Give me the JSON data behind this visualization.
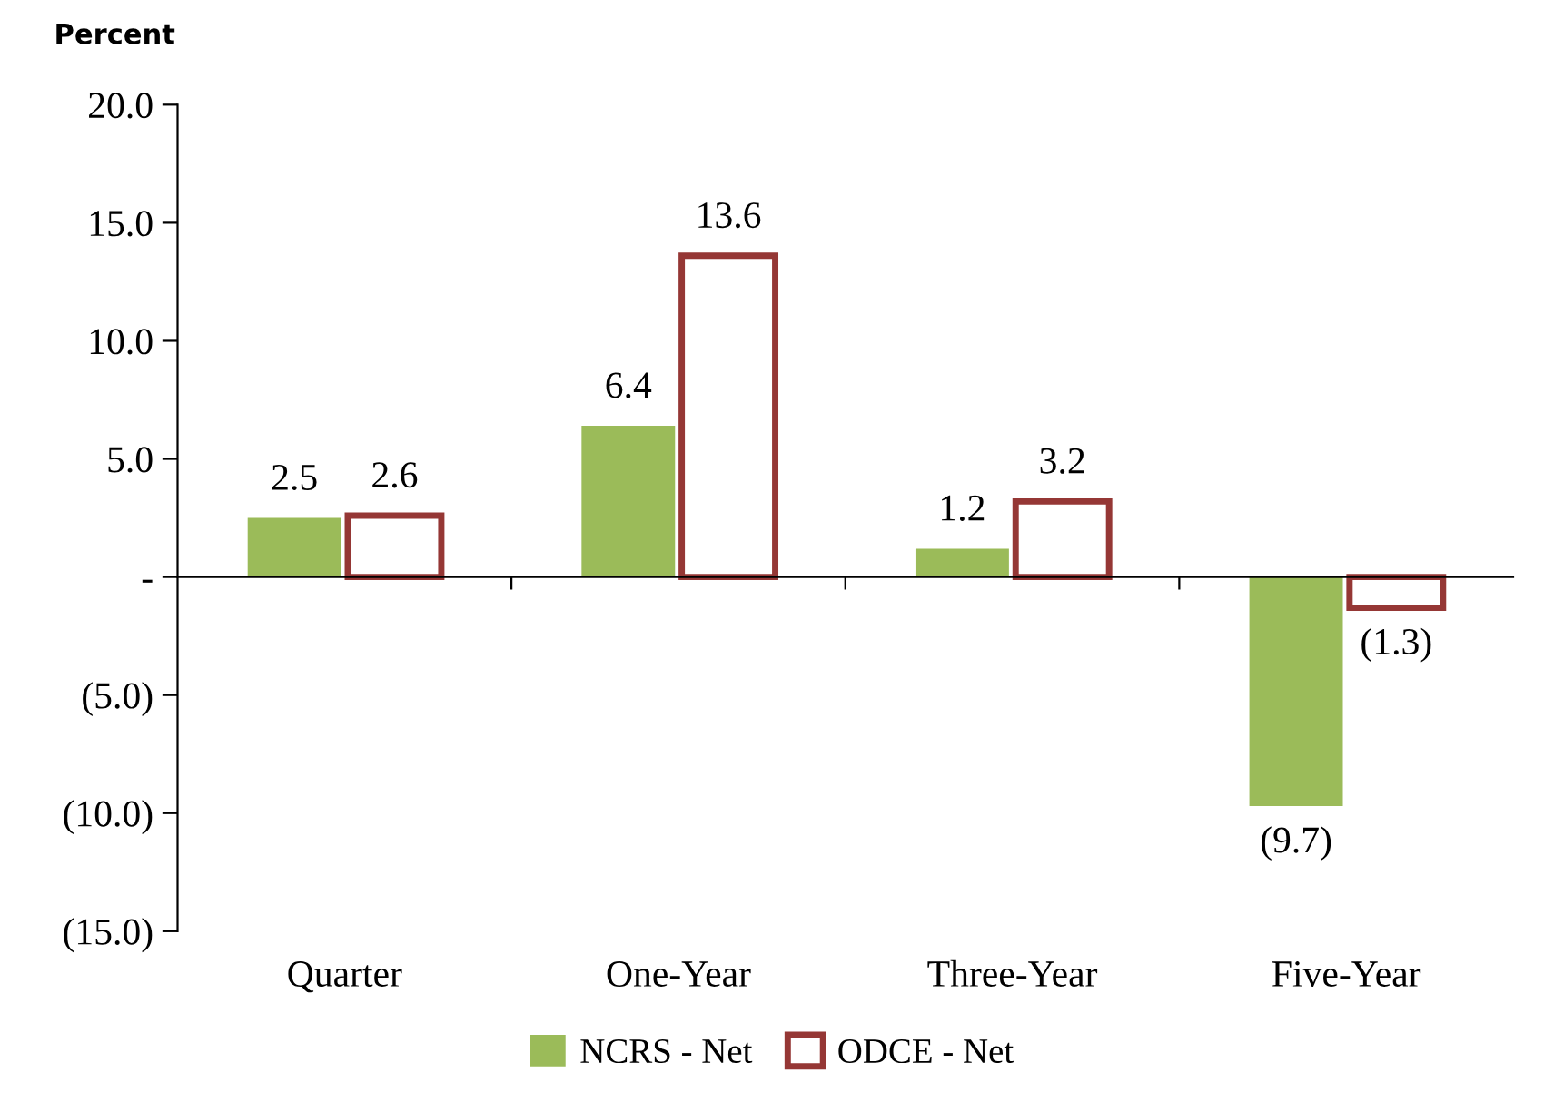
{
  "chart_data": {
    "type": "bar",
    "ylabel": "Percent",
    "categories": [
      "Quarter",
      "One-Year",
      "Three-Year",
      "Five-Year"
    ],
    "series": [
      {
        "name": "NCRS - Net",
        "color": "#9bbb59",
        "values": [
          2.5,
          6.4,
          1.2,
          -9.7
        ],
        "value_labels": [
          "2.5",
          "6.4",
          "1.2",
          "(9.7)"
        ]
      },
      {
        "name": "ODCE - Net",
        "color": "#953735",
        "values": [
          2.6,
          13.6,
          3.2,
          -1.3
        ],
        "value_labels": [
          "2.6",
          "13.6",
          "3.2",
          "(1.3)"
        ]
      }
    ],
    "ylim": [
      -15,
      20
    ],
    "yticks": [
      {
        "value": -15,
        "label": "(15.0)"
      },
      {
        "value": -10,
        "label": "(10.0)"
      },
      {
        "value": -5,
        "label": "(5.0)"
      },
      {
        "value": 0,
        "label": "-"
      },
      {
        "value": 5,
        "label": "5.0"
      },
      {
        "value": 10,
        "label": "10.0"
      },
      {
        "value": 15,
        "label": "15.0"
      },
      {
        "value": 20,
        "label": "20.0"
      }
    ],
    "legend": "bottom"
  }
}
